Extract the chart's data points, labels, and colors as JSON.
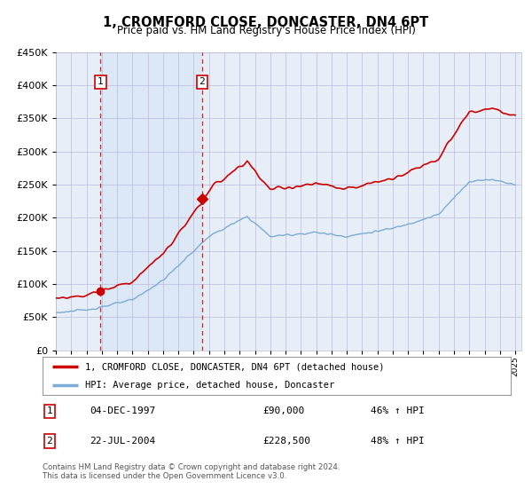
{
  "title": "1, CROMFORD CLOSE, DONCASTER, DN4 6PT",
  "subtitle": "Price paid vs. HM Land Registry's House Price Index (HPI)",
  "sale1_price": 90000,
  "sale1_label": "04-DEC-1997",
  "sale1_hpi": "46% ↑ HPI",
  "sale2_price": 228500,
  "sale2_label": "22-JUL-2004",
  "sale2_hpi": "48% ↑ HPI",
  "sale1_year": 1997.917,
  "sale2_year": 2004.542,
  "hpi_line_color": "#7aacd6",
  "price_line_color": "#cc0000",
  "sale_marker_color": "#cc0000",
  "vline_color": "#cc0000",
  "ylim": [
    0,
    450000
  ],
  "yticks": [
    0,
    50000,
    100000,
    150000,
    200000,
    250000,
    300000,
    350000,
    400000,
    450000
  ],
  "xlim_start": 1995,
  "xlim_end": 2025.4,
  "background_color": "#ffffff",
  "plot_bg_color": "#e8eef8",
  "shade_color": "#dce8f5",
  "grid_color": "#bbbbdd",
  "legend_label1": "1, CROMFORD CLOSE, DONCASTER, DN4 6PT (detached house)",
  "legend_label2": "HPI: Average price, detached house, Doncaster",
  "footer": "Contains HM Land Registry data © Crown copyright and database right 2024.\nThis data is licensed under the Open Government Licence v3.0."
}
